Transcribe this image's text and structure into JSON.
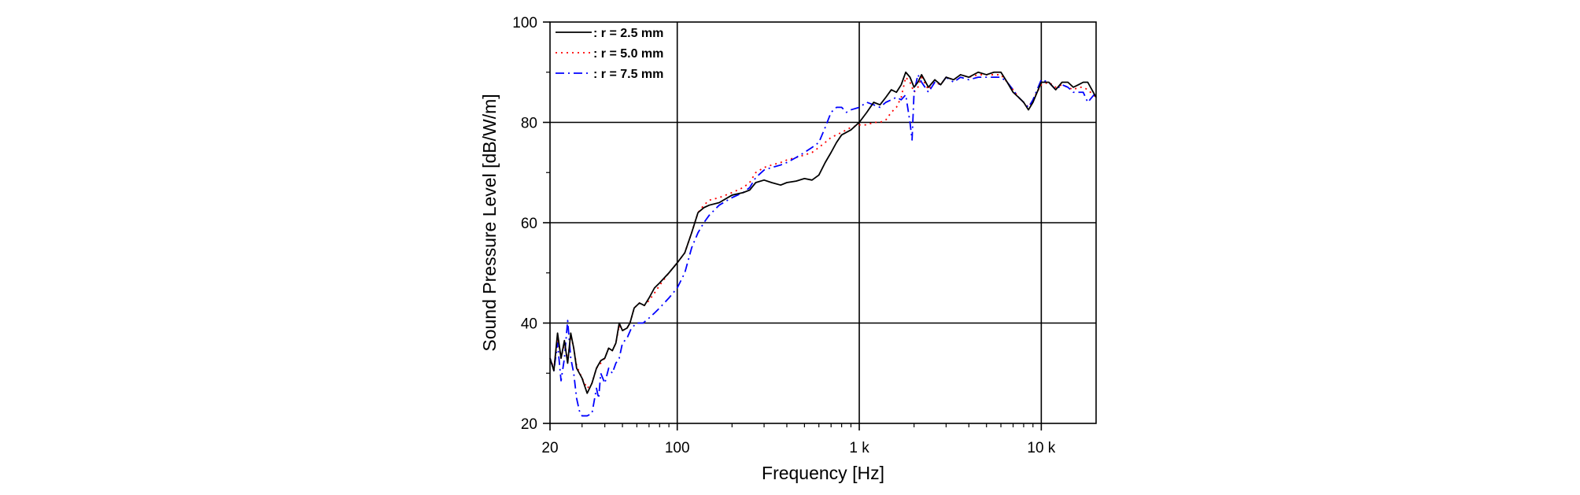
{
  "chart_data": {
    "type": "line",
    "xlabel": "Frequency [Hz]",
    "ylabel": "Sound Pressure Level [dB/W/m]",
    "x_scale": "log",
    "xlim": [
      20,
      20000
    ],
    "ylim": [
      20,
      100
    ],
    "x_ticks": [
      {
        "value": 20,
        "label": "20"
      },
      {
        "value": 100,
        "label": "100"
      },
      {
        "value": 1000,
        "label": "1 k"
      },
      {
        "value": 10000,
        "label": "10 k"
      }
    ],
    "y_ticks": [
      {
        "value": 20,
        "label": "20"
      },
      {
        "value": 40,
        "label": "40"
      },
      {
        "value": 60,
        "label": "60"
      },
      {
        "value": 80,
        "label": "80"
      },
      {
        "value": 100,
        "label": "100"
      }
    ],
    "grid": true,
    "legend_position": "top-left",
    "series": [
      {
        "name": ": r = 2.5 mm",
        "color": "#000000",
        "dash": "solid",
        "points": [
          [
            20,
            33
          ],
          [
            21,
            30.5
          ],
          [
            22,
            38
          ],
          [
            23,
            33
          ],
          [
            24,
            36.5
          ],
          [
            25,
            32
          ],
          [
            26,
            38
          ],
          [
            27,
            35
          ],
          [
            28,
            31
          ],
          [
            30,
            29
          ],
          [
            32,
            26
          ],
          [
            34,
            28
          ],
          [
            36,
            31
          ],
          [
            38,
            32.5
          ],
          [
            40,
            33
          ],
          [
            42,
            35
          ],
          [
            44,
            34.5
          ],
          [
            46,
            36
          ],
          [
            48,
            40
          ],
          [
            50,
            38.5
          ],
          [
            53,
            39
          ],
          [
            55,
            40
          ],
          [
            58,
            43
          ],
          [
            62,
            44
          ],
          [
            66,
            43.5
          ],
          [
            70,
            45
          ],
          [
            75,
            47
          ],
          [
            80,
            48
          ],
          [
            90,
            50
          ],
          [
            100,
            52
          ],
          [
            110,
            54
          ],
          [
            120,
            58
          ],
          [
            130,
            62
          ],
          [
            140,
            63
          ],
          [
            150,
            63.5
          ],
          [
            170,
            64
          ],
          [
            200,
            65.5
          ],
          [
            230,
            66
          ],
          [
            250,
            66.5
          ],
          [
            270,
            68
          ],
          [
            300,
            68.5
          ],
          [
            330,
            68
          ],
          [
            370,
            67.5
          ],
          [
            400,
            68
          ],
          [
            450,
            68.3
          ],
          [
            500,
            68.8
          ],
          [
            550,
            68.5
          ],
          [
            600,
            69.5
          ],
          [
            650,
            72
          ],
          [
            700,
            74
          ],
          [
            750,
            76
          ],
          [
            800,
            77.5
          ],
          [
            900,
            78.5
          ],
          [
            1000,
            80
          ],
          [
            1100,
            82
          ],
          [
            1200,
            84
          ],
          [
            1300,
            83.5
          ],
          [
            1400,
            85
          ],
          [
            1500,
            86.5
          ],
          [
            1600,
            86
          ],
          [
            1700,
            87.5
          ],
          [
            1800,
            90
          ],
          [
            1900,
            89
          ],
          [
            2000,
            87
          ],
          [
            2100,
            88
          ],
          [
            2200,
            89.5
          ],
          [
            2400,
            87
          ],
          [
            2600,
            88.5
          ],
          [
            2800,
            87.5
          ],
          [
            3000,
            89
          ],
          [
            3300,
            88.5
          ],
          [
            3600,
            89.5
          ],
          [
            4000,
            89
          ],
          [
            4500,
            90
          ],
          [
            5000,
            89.5
          ],
          [
            5500,
            90
          ],
          [
            6000,
            90
          ],
          [
            6500,
            88
          ],
          [
            7000,
            86
          ],
          [
            7500,
            85
          ],
          [
            8000,
            84
          ],
          [
            8500,
            82.5
          ],
          [
            9000,
            84
          ],
          [
            10000,
            88
          ],
          [
            11000,
            88
          ],
          [
            12000,
            86.5
          ],
          [
            13000,
            88
          ],
          [
            14000,
            88
          ],
          [
            15000,
            87
          ],
          [
            16000,
            87.5
          ],
          [
            17000,
            88
          ],
          [
            18000,
            88
          ],
          [
            20000,
            85
          ]
        ]
      },
      {
        "name": ": r = 5.0 mm",
        "color": "#ff0000",
        "dash": "dot",
        "points": [
          [
            20,
            33
          ],
          [
            21,
            31
          ],
          [
            22,
            37
          ],
          [
            23,
            33
          ],
          [
            24,
            36
          ],
          [
            25,
            32.5
          ],
          [
            26,
            37.5
          ],
          [
            27,
            35
          ],
          [
            28,
            31.5
          ],
          [
            30,
            29
          ],
          [
            32,
            27
          ],
          [
            34,
            28
          ],
          [
            36,
            31
          ],
          [
            38,
            32
          ],
          [
            40,
            33
          ],
          [
            42,
            35
          ],
          [
            44,
            34.5
          ],
          [
            46,
            36
          ],
          [
            48,
            39.5
          ],
          [
            50,
            38.5
          ],
          [
            53,
            39
          ],
          [
            55,
            40
          ],
          [
            58,
            43
          ],
          [
            62,
            44
          ],
          [
            66,
            43.5
          ],
          [
            70,
            44.5
          ],
          [
            75,
            46
          ],
          [
            80,
            47.5
          ],
          [
            90,
            50
          ],
          [
            100,
            52
          ],
          [
            110,
            54
          ],
          [
            120,
            58
          ],
          [
            130,
            62
          ],
          [
            140,
            63.5
          ],
          [
            150,
            64.5
          ],
          [
            170,
            65
          ],
          [
            200,
            66
          ],
          [
            230,
            67
          ],
          [
            250,
            68
          ],
          [
            270,
            70
          ],
          [
            300,
            71
          ],
          [
            330,
            71.5
          ],
          [
            370,
            72
          ],
          [
            400,
            72.5
          ],
          [
            450,
            73
          ],
          [
            500,
            73.5
          ],
          [
            550,
            74
          ],
          [
            600,
            75
          ],
          [
            650,
            76
          ],
          [
            700,
            77
          ],
          [
            750,
            77.5
          ],
          [
            800,
            78
          ],
          [
            900,
            79
          ],
          [
            1000,
            79.5
          ],
          [
            1100,
            79.5
          ],
          [
            1200,
            80
          ],
          [
            1300,
            80
          ],
          [
            1400,
            80.5
          ],
          [
            1500,
            82
          ],
          [
            1600,
            83
          ],
          [
            1700,
            85
          ],
          [
            1800,
            89
          ],
          [
            1900,
            88
          ],
          [
            2000,
            86
          ],
          [
            2100,
            87
          ],
          [
            2200,
            89
          ],
          [
            2400,
            86.5
          ],
          [
            2600,
            88
          ],
          [
            2800,
            87.5
          ],
          [
            3000,
            89
          ],
          [
            3300,
            88.5
          ],
          [
            3600,
            89.5
          ],
          [
            4000,
            89
          ],
          [
            4500,
            89.5
          ],
          [
            5000,
            89.5
          ],
          [
            5500,
            89.5
          ],
          [
            6000,
            89.5
          ],
          [
            6500,
            88
          ],
          [
            7000,
            86.5
          ],
          [
            7500,
            85
          ],
          [
            8000,
            84
          ],
          [
            8500,
            83
          ],
          [
            9000,
            84.5
          ],
          [
            10000,
            87.5
          ],
          [
            11000,
            88
          ],
          [
            12000,
            87
          ],
          [
            13000,
            87.5
          ],
          [
            14000,
            87
          ],
          [
            15000,
            86.5
          ],
          [
            16000,
            87
          ],
          [
            17000,
            87
          ],
          [
            18000,
            86.5
          ],
          [
            20000,
            85
          ]
        ]
      },
      {
        "name": ": r = 7.5 mm",
        "color": "#0000ff",
        "dash": "dashdot",
        "points": [
          [
            20,
            33
          ],
          [
            21,
            30.5
          ],
          [
            22,
            36
          ],
          [
            23,
            28.5
          ],
          [
            24,
            33
          ],
          [
            25,
            40.5
          ],
          [
            26,
            33
          ],
          [
            27,
            30
          ],
          [
            28,
            25
          ],
          [
            29,
            22.5
          ],
          [
            30,
            21.5
          ],
          [
            32,
            21.5
          ],
          [
            34,
            22
          ],
          [
            36,
            27
          ],
          [
            37,
            25
          ],
          [
            38,
            30
          ],
          [
            40,
            28
          ],
          [
            42,
            31
          ],
          [
            44,
            30
          ],
          [
            46,
            32
          ],
          [
            48,
            33
          ],
          [
            50,
            36
          ],
          [
            53,
            37
          ],
          [
            56,
            39
          ],
          [
            60,
            40
          ],
          [
            65,
            40
          ],
          [
            70,
            41
          ],
          [
            75,
            42
          ],
          [
            80,
            43
          ],
          [
            90,
            45
          ],
          [
            100,
            47
          ],
          [
            110,
            50
          ],
          [
            120,
            55
          ],
          [
            130,
            58
          ],
          [
            140,
            60
          ],
          [
            150,
            61.5
          ],
          [
            170,
            63.5
          ],
          [
            200,
            65
          ],
          [
            230,
            66
          ],
          [
            250,
            67
          ],
          [
            270,
            69
          ],
          [
            300,
            70.5
          ],
          [
            330,
            71
          ],
          [
            370,
            71.5
          ],
          [
            400,
            72
          ],
          [
            450,
            73
          ],
          [
            500,
            74
          ],
          [
            550,
            75
          ],
          [
            600,
            76
          ],
          [
            650,
            79
          ],
          [
            700,
            82
          ],
          [
            750,
            83
          ],
          [
            800,
            83
          ],
          [
            850,
            82
          ],
          [
            900,
            82.5
          ],
          [
            1000,
            83
          ],
          [
            1100,
            84
          ],
          [
            1200,
            83.5
          ],
          [
            1300,
            83
          ],
          [
            1400,
            84
          ],
          [
            1500,
            84.5
          ],
          [
            1600,
            85
          ],
          [
            1700,
            84.5
          ],
          [
            1800,
            85.5
          ],
          [
            1900,
            80
          ],
          [
            1950,
            76.5
          ],
          [
            2000,
            86
          ],
          [
            2100,
            89.5
          ],
          [
            2200,
            88
          ],
          [
            2400,
            86
          ],
          [
            2600,
            88
          ],
          [
            2800,
            87.5
          ],
          [
            3000,
            89
          ],
          [
            3300,
            88
          ],
          [
            3600,
            89
          ],
          [
            4000,
            88.5
          ],
          [
            4500,
            89
          ],
          [
            5000,
            89
          ],
          [
            5500,
            89
          ],
          [
            6000,
            89
          ],
          [
            6500,
            88
          ],
          [
            7000,
            86.5
          ],
          [
            7500,
            85
          ],
          [
            8000,
            84
          ],
          [
            8500,
            83
          ],
          [
            9000,
            84.5
          ],
          [
            10000,
            88.5
          ],
          [
            11000,
            88
          ],
          [
            12000,
            86.5
          ],
          [
            13000,
            87.5
          ],
          [
            14000,
            87
          ],
          [
            15000,
            86
          ],
          [
            16000,
            86
          ],
          [
            17000,
            86
          ],
          [
            18000,
            84
          ],
          [
            20000,
            86
          ]
        ]
      }
    ]
  }
}
